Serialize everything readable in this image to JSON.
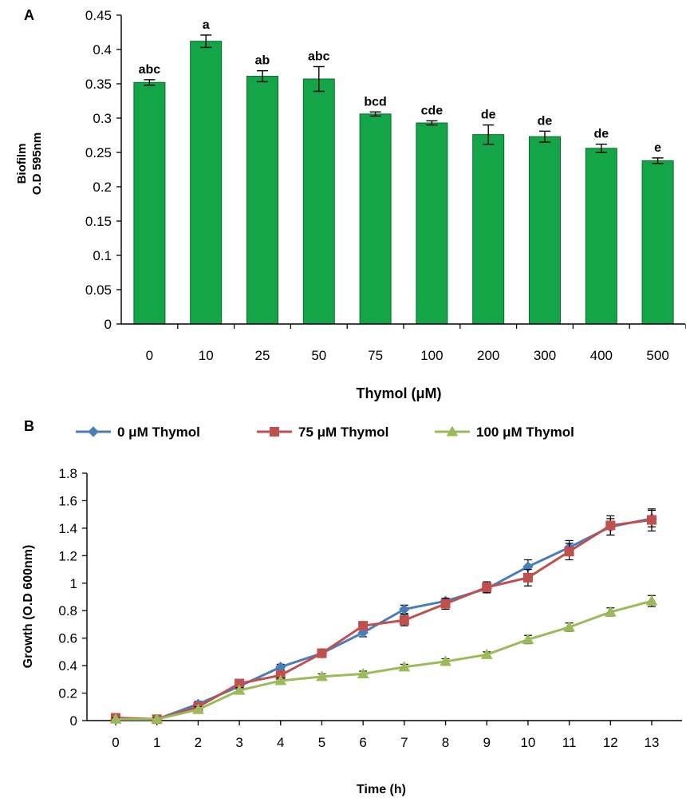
{
  "colors": {
    "bar_fill": "#13a548",
    "bar_stroke": "#0b6b2d",
    "series_0": "#4a7ebb",
    "series_75": "#c0504d",
    "series_100": "#9bbb59",
    "axis": "#000000"
  },
  "chart_data": [
    {
      "type": "bar",
      "panel_label": "A",
      "title": "",
      "xlabel": "Thymol (μM)",
      "ylabel_lines": [
        "Biofilm",
        "O.D 595nm"
      ],
      "ylim": [
        0,
        0.45
      ],
      "y_ticks": [
        0,
        0.05,
        0.1,
        0.15,
        0.2,
        0.25,
        0.3,
        0.35,
        0.4,
        0.45
      ],
      "y_tick_labels": [
        "0",
        "0.05",
        "0.1",
        "0.15",
        "0.2",
        "0.25",
        "0.3",
        "0.35",
        "0.4",
        "0.45"
      ],
      "grid": false,
      "categories": [
        "0",
        "10",
        "25",
        "50",
        "75",
        "100",
        "200",
        "300",
        "400",
        "500"
      ],
      "values": [
        0.352,
        0.412,
        0.361,
        0.357,
        0.306,
        0.293,
        0.276,
        0.273,
        0.256,
        0.238
      ],
      "errors": [
        0.004,
        0.009,
        0.008,
        0.018,
        0.003,
        0.003,
        0.014,
        0.008,
        0.006,
        0.004
      ],
      "annotations": [
        "abc",
        "a",
        "ab",
        "abc",
        "bcd",
        "cde",
        "de",
        "de",
        "de",
        "e"
      ]
    },
    {
      "type": "line",
      "panel_label": "B",
      "title": "",
      "xlabel": "Time (h)",
      "ylabel": "Growth (O.D 600nm)",
      "ylim": [
        0,
        1.8
      ],
      "xlim": [
        0,
        13
      ],
      "x": [
        0,
        1,
        2,
        3,
        4,
        5,
        6,
        7,
        8,
        9,
        10,
        11,
        12,
        13
      ],
      "y_ticks": [
        0,
        0.2,
        0.4,
        0.6,
        0.8,
        1,
        1.2,
        1.4,
        1.6,
        1.8
      ],
      "y_tick_labels": [
        "0",
        "0.2",
        "0.4",
        "0.6",
        "0.8",
        "1",
        "1.2",
        "1.4",
        "1.6",
        "1.8"
      ],
      "grid": false,
      "legend_position": "top",
      "series": [
        {
          "name": "0 μM Thymol",
          "marker": "diamond",
          "values": [
            0.01,
            0.01,
            0.12,
            0.25,
            0.39,
            0.49,
            0.64,
            0.81,
            0.87,
            0.96,
            1.12,
            1.26,
            1.41,
            1.47
          ],
          "errors": [
            0.01,
            0.01,
            0.02,
            0.02,
            0.02,
            0.02,
            0.03,
            0.03,
            0.02,
            0.03,
            0.05,
            0.05,
            0.06,
            0.06
          ]
        },
        {
          "name": "75 μM Thymol",
          "marker": "square",
          "values": [
            0.02,
            0.01,
            0.1,
            0.27,
            0.33,
            0.49,
            0.69,
            0.73,
            0.85,
            0.97,
            1.04,
            1.23,
            1.42,
            1.46
          ],
          "errors": [
            0.01,
            0.01,
            0.02,
            0.02,
            0.02,
            0.03,
            0.03,
            0.04,
            0.04,
            0.04,
            0.06,
            0.06,
            0.07,
            0.08
          ]
        },
        {
          "name": "100 μM Thymol",
          "marker": "triangle",
          "values": [
            0.01,
            0.01,
            0.08,
            0.22,
            0.29,
            0.32,
            0.34,
            0.39,
            0.43,
            0.48,
            0.59,
            0.68,
            0.79,
            0.87
          ],
          "errors": [
            0.01,
            0.01,
            0.02,
            0.02,
            0.02,
            0.02,
            0.02,
            0.02,
            0.02,
            0.02,
            0.03,
            0.03,
            0.03,
            0.04
          ]
        }
      ]
    }
  ]
}
